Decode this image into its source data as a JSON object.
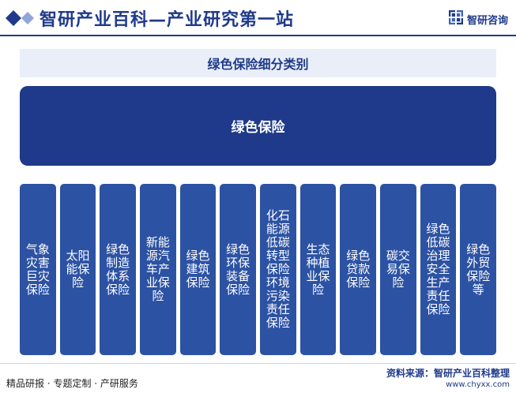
{
  "header": {
    "title": "智研产业百科—产业研究第一站",
    "brand_name": "智研咨询",
    "icon": "diamond-icon"
  },
  "diagram": {
    "title": "绿色保险细分类别",
    "root": "绿色保险",
    "children": [
      "气象灾害巨灾保险",
      "太阳能保险",
      "绿色制造体系保险",
      "新能源汽车产业保险",
      "绿色建筑保险",
      "绿色环保装备保险",
      "化石能源低碳转型保险环境污染责任保险",
      "生态种植业保险",
      "绿色贷款保险",
      "碳交易保险",
      "绿色低碳治理安全生产责任保险",
      "绿色外贸保险等"
    ]
  },
  "footer": {
    "services": "精品研报 · 专题定制 · 产研服务",
    "source": "资料来源：智研产业百科整理",
    "url": "www.chyxx.com"
  },
  "colors": {
    "primary": "#1f3a8a",
    "node": "#2c52a3",
    "title_bg": "#e9eef9"
  }
}
